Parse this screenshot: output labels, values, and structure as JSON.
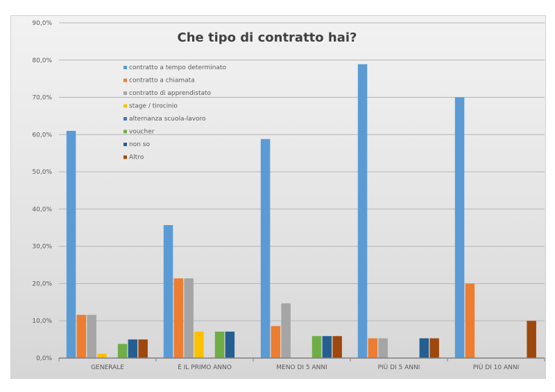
{
  "chart_data": {
    "type": "bar",
    "title": "Che tipo di contratto hai?",
    "xlabel": "",
    "ylabel": "",
    "ylim": [
      0,
      90
    ],
    "yticks": [
      "0,0%",
      "10,0%",
      "20,0%",
      "30,0%",
      "40,0%",
      "50,0%",
      "60,0%",
      "70,0%",
      "80,0%",
      "90,0%"
    ],
    "grid": true,
    "legend_position": "top-left",
    "categories": [
      "GENERALE",
      "È IL PRIMO ANNO",
      "MENO DI 5 ANNI",
      "PIÙ DI 5 ANNI",
      "PIÙ DI 10 ANNI"
    ],
    "series": [
      {
        "name": "contratto a tempo determinato",
        "color": "#5b9bd5",
        "values": [
          61.0,
          35.7,
          58.8,
          78.9,
          70.0
        ]
      },
      {
        "name": "contratto a chiamata",
        "color": "#ed7d31",
        "values": [
          11.6,
          21.4,
          8.6,
          5.3,
          20.0
        ]
      },
      {
        "name": "contratto di apprendistato",
        "color": "#a5a5a5",
        "values": [
          11.6,
          21.4,
          14.7,
          5.3,
          0
        ]
      },
      {
        "name": "stage / tirocinio",
        "color": "#ffc000",
        "values": [
          1.2,
          7.1,
          0,
          0,
          0
        ]
      },
      {
        "name": "alternanza scuola-lavoro",
        "color": "#4472c4",
        "values": [
          0,
          0,
          0,
          0,
          0
        ]
      },
      {
        "name": "voucher",
        "color": "#70ad47",
        "values": [
          3.8,
          7.1,
          5.9,
          0,
          0
        ]
      },
      {
        "name": "non so",
        "color": "#255e91",
        "values": [
          5.0,
          7.1,
          5.9,
          5.3,
          0
        ]
      },
      {
        "name": "Altro",
        "color": "#9e480e",
        "values": [
          5.0,
          0,
          5.9,
          5.3,
          10.0
        ]
      }
    ]
  }
}
